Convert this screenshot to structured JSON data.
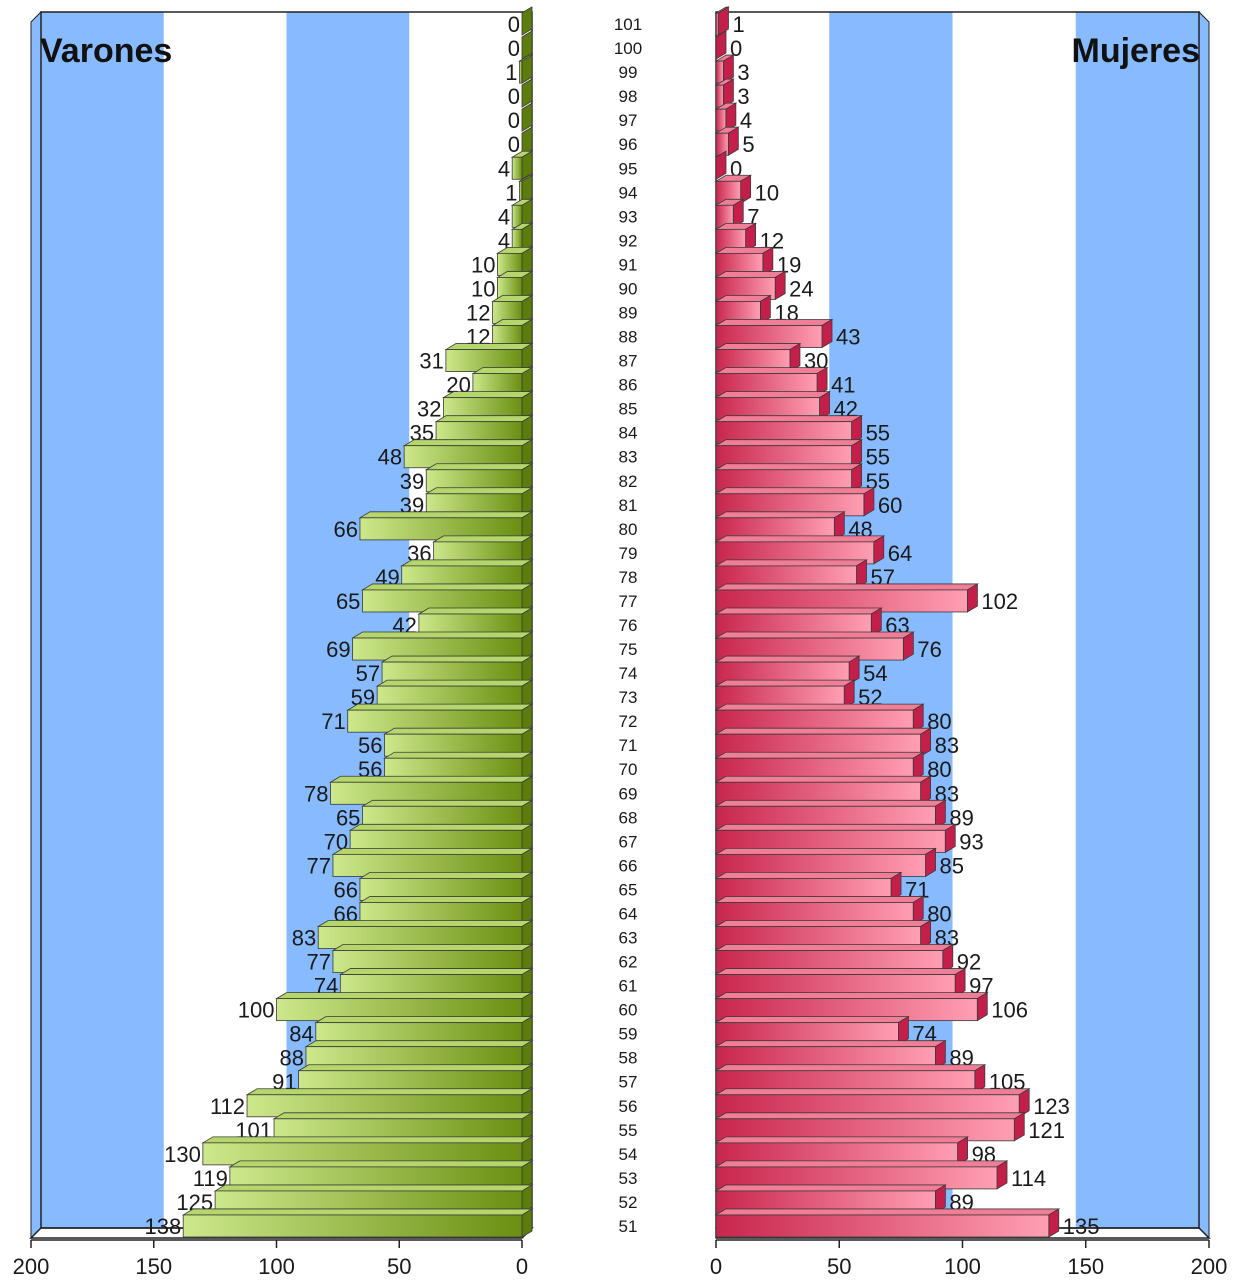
{
  "chart_data": {
    "type": "bar",
    "orientation": "horizontal",
    "categories": [
      "101",
      "100",
      "99",
      "98",
      "97",
      "96",
      "95",
      "94",
      "93",
      "92",
      "91",
      "90",
      "89",
      "88",
      "87",
      "86",
      "85",
      "84",
      "83",
      "82",
      "81",
      "80",
      "79",
      "78",
      "77",
      "76",
      "75",
      "74",
      "73",
      "72",
      "71",
      "70",
      "69",
      "68",
      "67",
      "66",
      "65",
      "64",
      "63",
      "62",
      "61",
      "60",
      "59",
      "58",
      "57",
      "56",
      "55",
      "54",
      "53",
      "52",
      "51"
    ],
    "series": [
      {
        "name": "Varones",
        "color": "#8db33a",
        "values": [
          0,
          0,
          1,
          0,
          0,
          0,
          4,
          1,
          4,
          4,
          10,
          10,
          12,
          12,
          31,
          20,
          32,
          35,
          48,
          39,
          39,
          66,
          36,
          49,
          65,
          42,
          69,
          57,
          59,
          71,
          56,
          56,
          78,
          65,
          70,
          77,
          66,
          66,
          83,
          77,
          74,
          100,
          84,
          88,
          91,
          112,
          101,
          130,
          119,
          125,
          138
        ]
      },
      {
        "name": "Mujeres",
        "color": "#e0506e",
        "values": [
          1,
          0,
          3,
          3,
          4,
          5,
          0,
          10,
          7,
          12,
          19,
          24,
          18,
          43,
          30,
          41,
          42,
          55,
          55,
          55,
          60,
          48,
          64,
          57,
          102,
          63,
          76,
          54,
          52,
          80,
          83,
          80,
          83,
          89,
          93,
          85,
          71,
          80,
          83,
          92,
          97,
          106,
          74,
          89,
          105,
          123,
          121,
          98,
          114,
          89,
          135
        ]
      }
    ],
    "xlim": [
      0,
      200
    ],
    "xticks": [
      "0",
      "50",
      "100",
      "150",
      "200"
    ],
    "grid": "alternating-bands",
    "band_color": "#87baff",
    "background": "#ffffff",
    "bar_edge": "#3a3a3a"
  }
}
